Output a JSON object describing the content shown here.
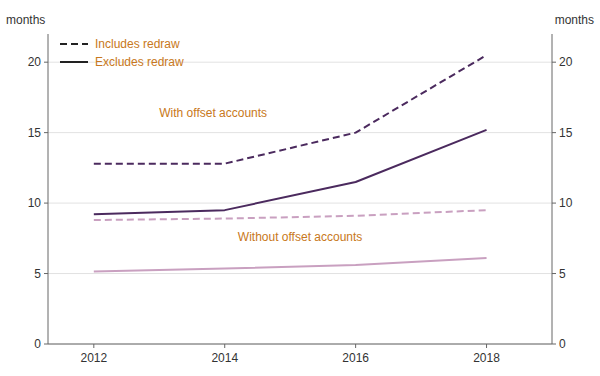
{
  "chart_data": {
    "type": "line",
    "x": [
      2012,
      2014,
      2016,
      2018
    ],
    "xlim": [
      2011.3,
      2019.0
    ],
    "xticks": [
      2012,
      2014,
      2016,
      2018
    ],
    "ylim": [
      0,
      22
    ],
    "yticks": [
      0,
      5,
      10,
      15,
      20
    ],
    "y2lim": [
      0,
      22
    ],
    "y2ticks": [
      0,
      5,
      10,
      15,
      20
    ],
    "y_label": "months",
    "y2_label": "months",
    "grid": true,
    "legend": "upper left",
    "legend_entries": [
      {
        "label": "Includes redraw",
        "line_style": "dashed",
        "color": "#c87820"
      },
      {
        "label": "Excludes redraw",
        "line_style": "solid",
        "color": "#c87820"
      }
    ],
    "series": [
      {
        "color": "#4b2a5e",
        "line_style": "dashed",
        "values": [
          12.8,
          12.8,
          15.0,
          20.5
        ]
      },
      {
        "color": "#4b2a5e",
        "line_style": "solid",
        "values": [
          9.2,
          9.5,
          11.5,
          15.2
        ]
      },
      {
        "color": "#c9a0c0",
        "line_style": "dashed",
        "values": [
          8.8,
          8.9,
          9.1,
          9.5
        ]
      },
      {
        "color": "#c9a0c0",
        "line_style": "solid",
        "values": [
          5.15,
          5.35,
          5.6,
          6.1
        ]
      }
    ],
    "annotations": [
      {
        "text": "With offset accounts",
        "x": 2013.0,
        "y": 16.0,
        "color": "#c87820"
      },
      {
        "text": "Without offset accounts",
        "x": 2014.2,
        "y": 7.2,
        "color": "#c87820"
      }
    ]
  }
}
